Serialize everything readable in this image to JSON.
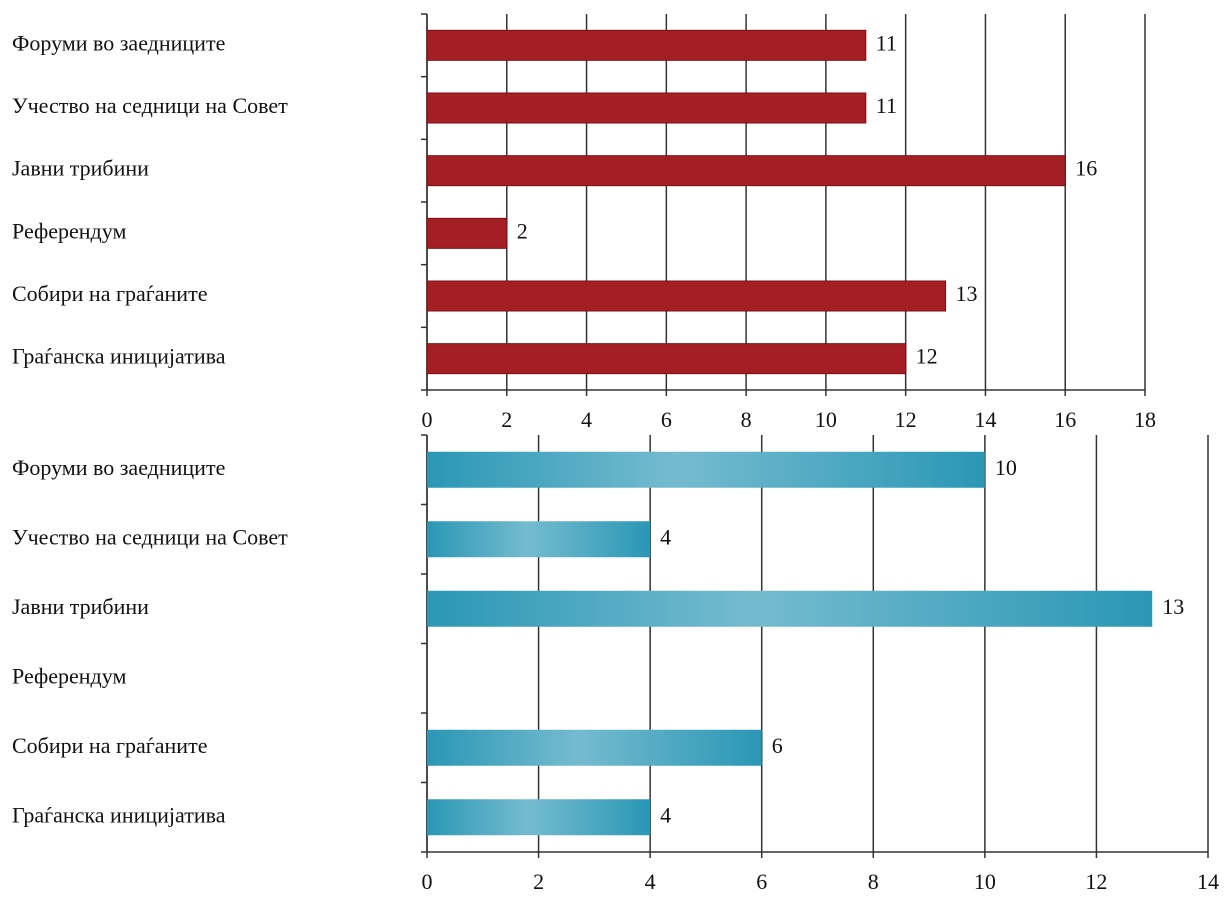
{
  "chart_data": [
    {
      "type": "bar",
      "orientation": "horizontal",
      "categories": [
        "Форуми во заедниците",
        "Учество на седници на Совет",
        "Јавни трибини",
        "Референдум",
        "Собири на граѓаните",
        "Граѓанска иницијатива"
      ],
      "values": [
        11,
        11,
        16,
        2,
        13,
        12
      ],
      "color": "#a31f24",
      "gradient": false,
      "xlim": [
        0,
        18
      ],
      "xticks": [
        0,
        2,
        4,
        6,
        8,
        10,
        12,
        14,
        16,
        18
      ],
      "grid": true
    },
    {
      "type": "bar",
      "orientation": "horizontal",
      "categories": [
        "Форуми во заедниците",
        "Учество на седници на Совет",
        "Јавни трибини",
        "Референдум",
        "Собири на граѓаните",
        "Граѓанска иницијатива"
      ],
      "values": [
        10,
        4,
        13,
        null,
        6,
        4
      ],
      "color": "#2a97b5",
      "gradient": true,
      "xlim": [
        0,
        14
      ],
      "xticks": [
        0,
        2,
        4,
        6,
        8,
        10,
        12,
        14
      ],
      "grid": true
    }
  ]
}
